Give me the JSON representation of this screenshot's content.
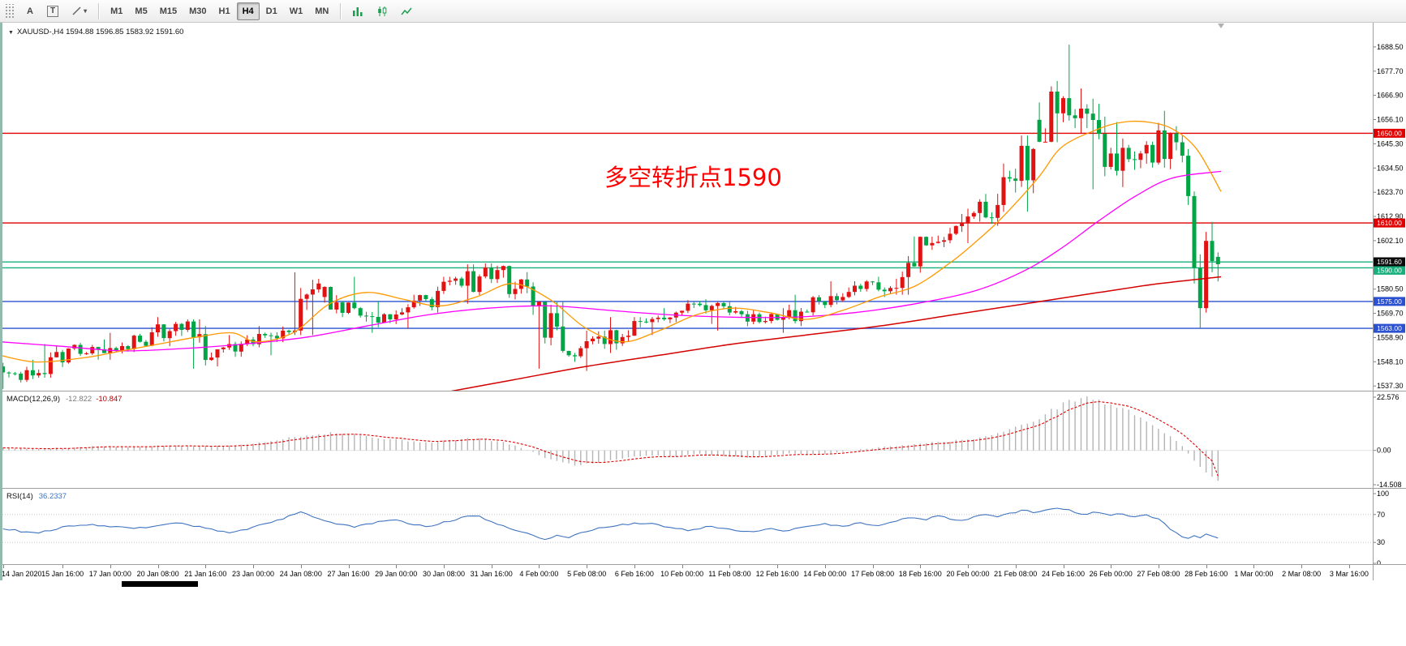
{
  "colors": {
    "bull": "#e01212",
    "bear": "#00a546",
    "ma_fast": "#ff9900",
    "ma_mid": "#ff00ff",
    "ma_slow": "#d40000",
    "level_red": "#e00000",
    "level_green": "#17b07c",
    "level_blue": "#2b50d0",
    "macd_hist": "#b4b4b4",
    "macd_signal": "#e00000",
    "rsi_line": "#3e73c0",
    "annotation": "#ff0000",
    "current_bg": "#0a0a0a"
  },
  "toolbar": {
    "tools": [
      {
        "name": "text-label-tool",
        "label": "A"
      },
      {
        "name": "text-box-tool",
        "label": "T"
      }
    ],
    "shapes_tool_caret": "▾",
    "timeframes": [
      "M1",
      "M5",
      "M15",
      "M30",
      "H1",
      "H4",
      "D1",
      "W1",
      "MN"
    ],
    "active_timeframe": "H4",
    "right_icons": [
      "bar-chart",
      "candlestick-chart",
      "line-chart"
    ]
  },
  "chart": {
    "title_expander": "▼",
    "title": "XAUUSD-,H4  1594.88 1596.85 1583.92 1591.60",
    "annotation": "多空转折点1590",
    "current_price": "1591.60",
    "price_ticks": [
      "1688.50",
      "1677.70",
      "1666.90",
      "1656.10",
      "1645.30",
      "1634.50",
      "1623.70",
      "1612.90",
      "1602.10",
      "1591.30",
      "1580.50",
      "1569.70",
      "1558.90",
      "1548.10",
      "1537.30"
    ],
    "levels": [
      {
        "price": 1650,
        "label": "1650.00",
        "color_key": "level_red"
      },
      {
        "price": 1610,
        "label": "1610.00",
        "color_key": "level_red"
      },
      {
        "price": 1592.6,
        "label": "",
        "color_key": "level_green"
      },
      {
        "price": 1590,
        "label": "1590.00",
        "color_key": "level_green"
      },
      {
        "price": 1575,
        "label": "1575.00",
        "color_key": "level_blue"
      },
      {
        "price": 1563,
        "label": "1563.00",
        "color_key": "level_blue"
      }
    ]
  },
  "macd": {
    "name": "MACD(12,26,9)",
    "value_main": "-12.822",
    "value_signal": "-10.847",
    "axis": [
      "22.576",
      "0.00",
      "-14.508"
    ]
  },
  "rsi": {
    "name": "RSI(14)",
    "value": "36.2337",
    "axis": [
      "100",
      "70",
      "30",
      "0"
    ],
    "guide_levels": [
      70,
      30
    ]
  },
  "time_axis": {
    "labels": [
      "14 Jan 2020",
      "15 Jan 16:00",
      "17 Jan 00:00",
      "20 Jan 08:00",
      "21 Jan 16:00",
      "23 Jan 00:00",
      "24 Jan 08:00",
      "27 Jan 16:00",
      "29 Jan 00:00",
      "30 Jan 08:00",
      "31 Jan 16:00",
      "4 Feb 00:00",
      "5 Feb 08:00",
      "6 Feb 16:00",
      "10 Feb 00:00",
      "11 Feb 08:00",
      "12 Feb 16:00",
      "14 Feb 00:00",
      "17 Feb 08:00",
      "18 Feb 16:00",
      "20 Feb 00:00",
      "21 Feb 08:00",
      "24 Feb 16:00",
      "26 Feb 00:00",
      "27 Feb 08:00",
      "28 Feb 16:00",
      "1 Mar 00:00",
      "2 Mar 08:00",
      "3 Mar 16:00"
    ]
  },
  "chart_data": [
    {
      "type": "candlestick",
      "symbol": "XAUUSD-",
      "timeframe": "H4",
      "ylim": [
        1535.2,
        1699.3
      ],
      "current_bar": {
        "open": 1594.88,
        "high": 1596.85,
        "low": 1583.92,
        "close": 1591.6
      },
      "hlines": [
        1650,
        1610,
        1592.6,
        1590,
        1575,
        1563
      ],
      "daily_ohlc": [
        [
          "14 Jan",
          1546,
          1549,
          1536,
          1542
        ],
        [
          "15 Jan",
          1542,
          1556,
          1541,
          1554
        ],
        [
          "16 Jan",
          1554,
          1558,
          1549,
          1552
        ],
        [
          "17 Jan",
          1552,
          1561,
          1549,
          1557
        ],
        [
          "20 Jan",
          1557,
          1568,
          1555,
          1565
        ],
        [
          "21 Jan",
          1565,
          1567,
          1545,
          1550
        ],
        [
          "22 Jan",
          1550,
          1560,
          1546,
          1558
        ],
        [
          "23 Jan",
          1558,
          1564,
          1551,
          1562
        ],
        [
          "24 Jan",
          1562,
          1588,
          1560,
          1583
        ],
        [
          "27 Jan",
          1577,
          1586,
          1568,
          1572
        ],
        [
          "28 Jan",
          1572,
          1575,
          1561,
          1567
        ],
        [
          "29 Jan",
          1567,
          1578,
          1563,
          1576
        ],
        [
          "30 Jan",
          1576,
          1586,
          1570,
          1582
        ],
        [
          "31 Jan",
          1582,
          1592,
          1574,
          1589
        ],
        [
          "3 Feb",
          1589,
          1591,
          1569,
          1573
        ],
        [
          "4 Feb",
          1573,
          1575,
          1545,
          1551
        ],
        [
          "5 Feb",
          1551,
          1562,
          1544,
          1556
        ],
        [
          "6 Feb",
          1556,
          1568,
          1552,
          1566
        ],
        [
          "7 Feb",
          1566,
          1572,
          1560,
          1570
        ],
        [
          "10 Feb",
          1570,
          1576,
          1565,
          1573
        ],
        [
          "11 Feb",
          1573,
          1575,
          1562,
          1566
        ],
        [
          "12 Feb",
          1566,
          1572,
          1561,
          1568
        ],
        [
          "13 Feb",
          1568,
          1578,
          1564,
          1575
        ],
        [
          "14 Feb",
          1575,
          1584,
          1572,
          1582
        ],
        [
          "17 Feb",
          1582,
          1586,
          1577,
          1581
        ],
        [
          "18 Feb",
          1581,
          1604,
          1578,
          1600
        ],
        [
          "19 Feb",
          1600,
          1614,
          1598,
          1610
        ],
        [
          "20 Feb",
          1610,
          1623,
          1601,
          1618
        ],
        [
          "21 Feb",
          1618,
          1649,
          1615,
          1643
        ],
        [
          "24 Feb",
          1656,
          1689.5,
          1646,
          1658
        ],
        [
          "25 Feb",
          1658,
          1670,
          1625,
          1635
        ],
        [
          "26 Feb",
          1635,
          1655,
          1626,
          1641
        ],
        [
          "27 Feb",
          1641,
          1660,
          1634,
          1646
        ]
      ],
      "final_h4_bars": [
        [
          1646,
          1649,
          1637,
          1640
        ],
        [
          1640,
          1643,
          1618,
          1622
        ],
        [
          1622,
          1624,
          1583,
          1590
        ],
        [
          1590,
          1596,
          1563,
          1572
        ],
        [
          1572,
          1606,
          1570,
          1602
        ],
        [
          1602,
          1610.5,
          1588,
          1593
        ],
        [
          1594.88,
          1596.85,
          1583.92,
          1591.6
        ]
      ],
      "ma_fast_anchors": [
        [
          0,
          1551
        ],
        [
          0.03,
          1548
        ],
        [
          0.07,
          1550
        ],
        [
          0.1,
          1553
        ],
        [
          0.13,
          1556
        ],
        [
          0.16,
          1559
        ],
        [
          0.19,
          1561
        ],
        [
          0.21,
          1557
        ],
        [
          0.24,
          1561
        ],
        [
          0.27,
          1574
        ],
        [
          0.3,
          1579
        ],
        [
          0.33,
          1576
        ],
        [
          0.36,
          1573
        ],
        [
          0.39,
          1577
        ],
        [
          0.42,
          1583
        ],
        [
          0.45,
          1576
        ],
        [
          0.48,
          1563
        ],
        [
          0.51,
          1557
        ],
        [
          0.54,
          1562
        ],
        [
          0.57,
          1569
        ],
        [
          0.6,
          1572
        ],
        [
          0.63,
          1570
        ],
        [
          0.66,
          1567
        ],
        [
          0.69,
          1571
        ],
        [
          0.72,
          1577
        ],
        [
          0.75,
          1582
        ],
        [
          0.78,
          1593
        ],
        [
          0.8,
          1602
        ],
        [
          0.82,
          1612
        ],
        [
          0.85,
          1630
        ],
        [
          0.87,
          1644
        ],
        [
          0.9,
          1652
        ],
        [
          0.92,
          1655
        ],
        [
          0.94,
          1655
        ],
        [
          0.96,
          1652
        ],
        [
          0.98,
          1643
        ],
        [
          1,
          1624
        ]
      ],
      "ma_mid_anchors": [
        [
          0,
          1557
        ],
        [
          0.05,
          1555
        ],
        [
          0.1,
          1553
        ],
        [
          0.15,
          1554
        ],
        [
          0.2,
          1556
        ],
        [
          0.25,
          1559
        ],
        [
          0.3,
          1564
        ],
        [
          0.35,
          1569
        ],
        [
          0.4,
          1572
        ],
        [
          0.45,
          1573
        ],
        [
          0.5,
          1571
        ],
        [
          0.55,
          1569
        ],
        [
          0.6,
          1568
        ],
        [
          0.65,
          1568
        ],
        [
          0.7,
          1570
        ],
        [
          0.75,
          1574
        ],
        [
          0.8,
          1580
        ],
        [
          0.84,
          1589
        ],
        [
          0.87,
          1599
        ],
        [
          0.9,
          1611
        ],
        [
          0.93,
          1622
        ],
        [
          0.96,
          1630
        ],
        [
          1,
          1633
        ]
      ],
      "ma_slow_anchors": [
        [
          0.3,
          1528
        ],
        [
          0.36,
          1534
        ],
        [
          0.42,
          1540
        ],
        [
          0.48,
          1546
        ],
        [
          0.54,
          1551
        ],
        [
          0.6,
          1556
        ],
        [
          0.66,
          1560
        ],
        [
          0.72,
          1564
        ],
        [
          0.78,
          1569
        ],
        [
          0.84,
          1574
        ],
        [
          0.9,
          1579
        ],
        [
          0.95,
          1583
        ],
        [
          1,
          1586
        ]
      ]
    },
    {
      "type": "bar",
      "name": "MACD(12,26,9)",
      "ylim": [
        -14.508,
        22.576
      ],
      "current": {
        "macd": -12.822,
        "signal": -10.847
      },
      "anchors": [
        [
          0,
          1.2
        ],
        [
          0.02,
          0.6
        ],
        [
          0.05,
          1.0
        ],
        [
          0.08,
          1.8
        ],
        [
          0.11,
          1.4
        ],
        [
          0.14,
          2.2
        ],
        [
          0.17,
          1.6
        ],
        [
          0.2,
          2.4
        ],
        [
          0.24,
          5.8
        ],
        [
          0.27,
          7.6
        ],
        [
          0.29,
          6.8
        ],
        [
          0.31,
          5.2
        ],
        [
          0.33,
          4.2
        ],
        [
          0.35,
          3.4
        ],
        [
          0.37,
          4.4
        ],
        [
          0.39,
          5.2
        ],
        [
          0.41,
          3.6
        ],
        [
          0.43,
          0.6
        ],
        [
          0.45,
          -3.8
        ],
        [
          0.47,
          -6.2
        ],
        [
          0.49,
          -5.2
        ],
        [
          0.51,
          -3.2
        ],
        [
          0.53,
          -2.0
        ],
        [
          0.55,
          -2.6
        ],
        [
          0.57,
          -1.4
        ],
        [
          0.59,
          -2.2
        ],
        [
          0.61,
          -3.0
        ],
        [
          0.63,
          -2.2
        ],
        [
          0.65,
          -1.2
        ],
        [
          0.67,
          -1.8
        ],
        [
          0.69,
          -0.6
        ],
        [
          0.71,
          0.8
        ],
        [
          0.73,
          1.6
        ],
        [
          0.75,
          2.8
        ],
        [
          0.77,
          3.6
        ],
        [
          0.79,
          4.4
        ],
        [
          0.81,
          6.0
        ],
        [
          0.83,
          9.0
        ],
        [
          0.85,
          13.0
        ],
        [
          0.87,
          19.0
        ],
        [
          0.88,
          21.5
        ],
        [
          0.89,
          22.5
        ],
        [
          0.9,
          21.5
        ],
        [
          0.91,
          19.5
        ],
        [
          0.925,
          17.0
        ],
        [
          0.94,
          13.0
        ],
        [
          0.955,
          8.0
        ],
        [
          0.97,
          2.0
        ],
        [
          0.98,
          -4.0
        ],
        [
          0.99,
          -9.0
        ],
        [
          1,
          -12.8
        ]
      ]
    },
    {
      "type": "line",
      "name": "RSI(14)",
      "ylim": [
        0,
        100
      ],
      "current": 36.2337,
      "guide_levels": [
        70,
        30
      ],
      "anchors": [
        [
          0,
          50
        ],
        [
          0.015,
          46
        ],
        [
          0.03,
          44
        ],
        [
          0.05,
          52
        ],
        [
          0.07,
          56
        ],
        [
          0.09,
          53
        ],
        [
          0.11,
          50
        ],
        [
          0.13,
          55
        ],
        [
          0.145,
          58
        ],
        [
          0.16,
          53
        ],
        [
          0.175,
          47
        ],
        [
          0.19,
          44
        ],
        [
          0.21,
          54
        ],
        [
          0.23,
          64
        ],
        [
          0.245,
          73
        ],
        [
          0.26,
          64
        ],
        [
          0.275,
          57
        ],
        [
          0.29,
          52
        ],
        [
          0.305,
          58
        ],
        [
          0.32,
          63
        ],
        [
          0.335,
          57
        ],
        [
          0.35,
          52
        ],
        [
          0.365,
          60
        ],
        [
          0.38,
          66
        ],
        [
          0.39,
          69
        ],
        [
          0.4,
          61
        ],
        [
          0.415,
          52
        ],
        [
          0.43,
          44
        ],
        [
          0.445,
          34
        ],
        [
          0.455,
          40
        ],
        [
          0.465,
          36
        ],
        [
          0.475,
          44
        ],
        [
          0.49,
          50
        ],
        [
          0.51,
          56
        ],
        [
          0.53,
          58
        ],
        [
          0.55,
          51
        ],
        [
          0.565,
          47
        ],
        [
          0.58,
          53
        ],
        [
          0.6,
          49
        ],
        [
          0.615,
          44
        ],
        [
          0.63,
          50
        ],
        [
          0.645,
          46
        ],
        [
          0.66,
          53
        ],
        [
          0.675,
          57
        ],
        [
          0.69,
          53
        ],
        [
          0.705,
          58
        ],
        [
          0.72,
          55
        ],
        [
          0.735,
          61
        ],
        [
          0.75,
          66
        ],
        [
          0.76,
          63
        ],
        [
          0.77,
          68
        ],
        [
          0.78,
          64
        ],
        [
          0.79,
          61
        ],
        [
          0.8,
          67
        ],
        [
          0.81,
          71
        ],
        [
          0.82,
          67
        ],
        [
          0.83,
          72
        ],
        [
          0.84,
          76
        ],
        [
          0.85,
          73
        ],
        [
          0.86,
          77
        ],
        [
          0.87,
          80
        ],
        [
          0.88,
          75
        ],
        [
          0.89,
          70
        ],
        [
          0.9,
          74
        ],
        [
          0.91,
          69
        ],
        [
          0.92,
          72
        ],
        [
          0.93,
          67
        ],
        [
          0.94,
          70
        ],
        [
          0.95,
          64
        ],
        [
          0.955,
          58
        ],
        [
          0.96,
          50
        ],
        [
          0.965,
          44
        ],
        [
          0.97,
          39
        ],
        [
          0.975,
          35
        ],
        [
          0.98,
          41
        ],
        [
          0.985,
          37
        ],
        [
          0.99,
          42
        ],
        [
          0.995,
          39
        ],
        [
          1,
          36.2
        ]
      ]
    }
  ]
}
